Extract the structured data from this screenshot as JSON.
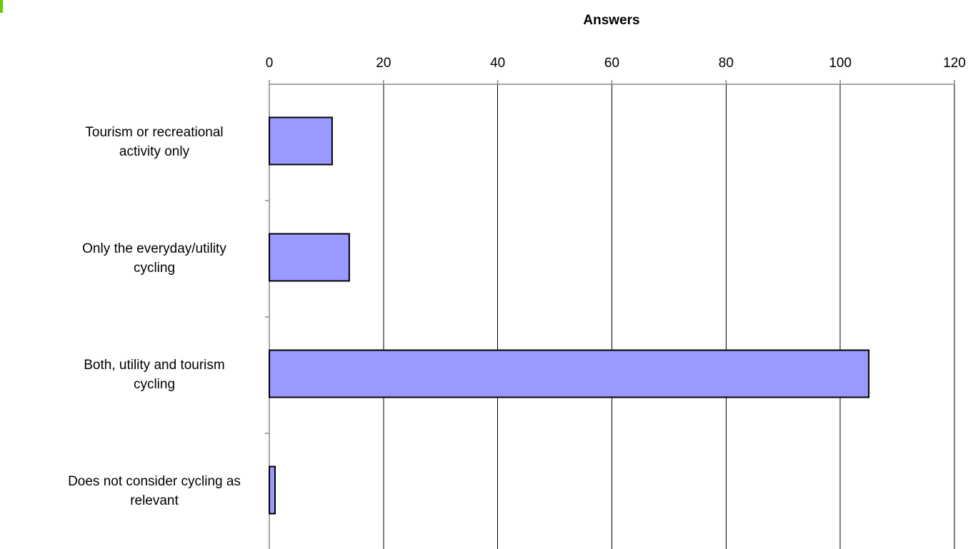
{
  "chart_data": {
    "type": "bar",
    "orientation": "horizontal",
    "title": "",
    "xlabel": "Answers",
    "ylabel": "",
    "categories": [
      [
        "Tourism or recreational",
        "activity only"
      ],
      [
        "Only the everyday/utility",
        "cycling"
      ],
      [
        "Both, utility and tourism",
        "cycling"
      ],
      [
        "Does not consider cycling as",
        "relevant"
      ]
    ],
    "values": [
      11,
      14,
      105,
      1
    ],
    "xlim": [
      0,
      120
    ],
    "xticks": [
      0,
      20,
      40,
      60,
      80,
      100,
      120
    ],
    "x_axis_position": "top",
    "grid": true,
    "legend": "none",
    "colors": {
      "bar_fill": "#9999ff",
      "bar_stroke": "#000000",
      "grid": "#000000",
      "axis": "#888888",
      "corner_mark": "#66cc00"
    }
  }
}
